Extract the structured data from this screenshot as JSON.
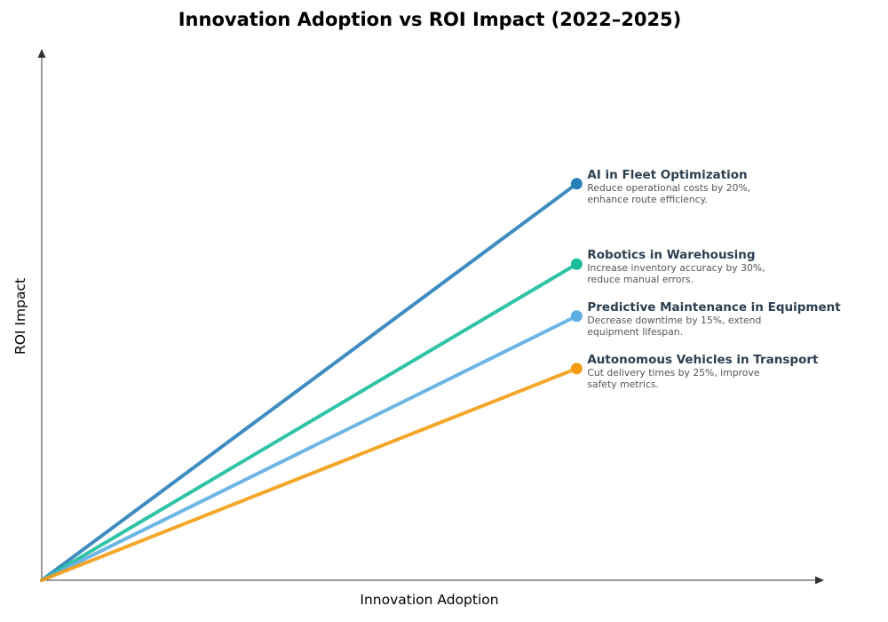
{
  "chart_data": {
    "type": "line",
    "title": "Innovation Adoption vs ROI Impact (2022–2025)",
    "xlabel": "Innovation Adoption",
    "ylabel": "ROI Impact",
    "xlim": [
      0,
      1
    ],
    "ylim": [
      0,
      1
    ],
    "grid": false,
    "ticks": false,
    "series": [
      {
        "name": "AI in Fleet Optimization",
        "description": "Reduce operational costs by 20%, enhance route efficiency.",
        "color": "#2980b9",
        "x": [
          0,
          0.69
        ],
        "y": [
          0,
          0.755
        ]
      },
      {
        "name": "Robotics in Warehousing",
        "description": "Increase inventory accuracy by 30%, reduce manual errors.",
        "color": "#1abc9c",
        "x": [
          0,
          0.69
        ],
        "y": [
          0,
          0.602
        ]
      },
      {
        "name": "Predictive Maintenance in Equipment",
        "description": "Decrease downtime by 15%, extend equipment lifespan.",
        "color": "#5dade2",
        "x": [
          0,
          0.69
        ],
        "y": [
          0,
          0.503
        ]
      },
      {
        "name": "Autonomous Vehicles in Transport",
        "description": "Cut delivery times by 25%, improve safety metrics.",
        "color": "#f39c12",
        "x": [
          0,
          0.69
        ],
        "y": [
          0,
          0.403
        ]
      }
    ]
  }
}
